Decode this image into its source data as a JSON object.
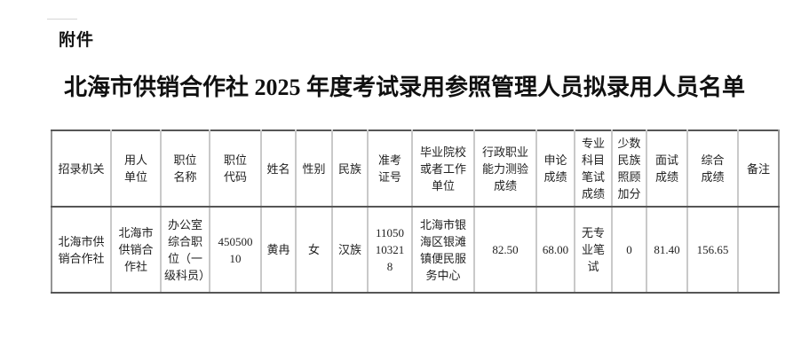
{
  "page": {
    "attachment_label": "附件",
    "title": "北海市供销合作社 2025 年度考试录用参照管理人员拟录用人员名单",
    "background_color": "#ffffff",
    "text_color": "#1f1f1f"
  },
  "table": {
    "column_headers": [
      "招录机关",
      "用人\n单位",
      "职位\n名称",
      "职位\n代码",
      "姓名",
      "性别",
      "民族",
      "准考\n证号",
      "毕业院校\n或者工作\n单位",
      "行政职业\n能力测验\n成绩",
      "申论\n成绩",
      "专业\n科目\n笔试\n成绩",
      "少数\n民族\n照顾\n加分",
      "面试\n成绩",
      "综合\n成绩",
      "备注"
    ],
    "rows": [
      [
        "北海市供销合作社",
        "北海市供销合作社",
        "办公室综合职位（一级科员）",
        "45050010",
        "黄冉",
        "女",
        "汉族",
        "11050103218",
        "北海市银海区银滩镇便民服务中心",
        "82.50",
        "68.00",
        "无专业笔试",
        "0",
        "81.40",
        "156.65",
        ""
      ]
    ],
    "border_colors": {
      "horizontal": "#565656",
      "vertical_inner": "#c9c9c9",
      "vertical_outer": "#949494"
    }
  }
}
